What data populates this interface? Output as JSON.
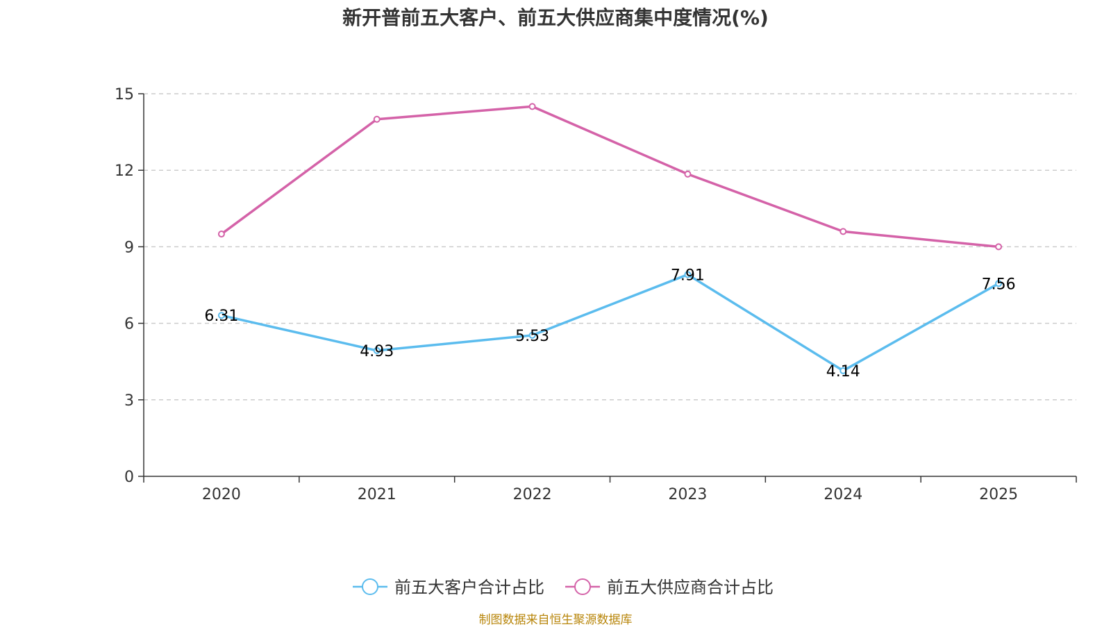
{
  "chart_data": {
    "type": "line",
    "title": "新开普前五大客户、前五大供应商集中度情况(%)",
    "categories": [
      "2020",
      "2021",
      "2022",
      "2023",
      "2024",
      "2025"
    ],
    "series": [
      {
        "name": "前五大客户合计占比",
        "color": "#5bbcee",
        "values": [
          6.31,
          4.93,
          5.53,
          7.91,
          4.14,
          7.56
        ],
        "labeled": true
      },
      {
        "name": "前五大供应商合计占比",
        "color": "#d462a8",
        "values": [
          9.5,
          14.0,
          14.5,
          11.85,
          9.6,
          9.0
        ],
        "labeled": false
      }
    ],
    "yticks": [
      0,
      3,
      6,
      9,
      12,
      15
    ],
    "ylim": [
      0,
      15
    ],
    "grid": true,
    "legend": "bottom-center"
  },
  "source": "制图数据来自恒生聚源数据库"
}
